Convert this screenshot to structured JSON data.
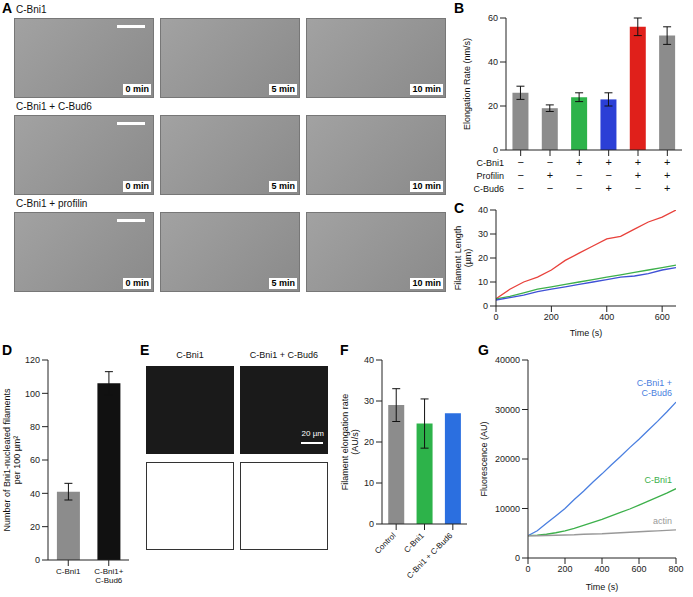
{
  "panels": {
    "A": {
      "panel": "A",
      "rows": [
        {
          "title": "C-Bni1",
          "times": [
            "0 min",
            "5 min",
            "10 min"
          ]
        },
        {
          "title": "C-Bni1 + C-Bud6",
          "times": [
            "0 min",
            "5 min",
            "10 min"
          ]
        },
        {
          "title": "C-Bni1 + profilin",
          "times": [
            "0 min",
            "5 min",
            "10 min"
          ]
        }
      ]
    },
    "E": {
      "panel": "E",
      "columns": [
        "C-Bni1",
        "C-Bni1 + C-Bud6"
      ],
      "scale_bar": "20 µm"
    }
  },
  "chart_data": [
    {
      "panel": "B",
      "type": "bar",
      "y_label": "Elongation Rate (nm/s)",
      "categories": [
        null,
        null,
        null,
        null,
        null,
        null
      ],
      "values": [
        26,
        19,
        24,
        23,
        56,
        52
      ],
      "errors": [
        3,
        1.5,
        2,
        3,
        4,
        4
      ],
      "colors": [
        "#8c8c8c",
        "#8c8c8c",
        "#2db34a",
        "#2b3fd6",
        "#e0201b",
        "#8c8c8c"
      ],
      "ylim": [
        0,
        60
      ],
      "yticks": [
        0,
        20,
        40,
        60
      ],
      "conditions": [
        {
          "name": "C-Bni1",
          "marks": [
            "−",
            "−",
            "+",
            "+",
            "+",
            "+"
          ]
        },
        {
          "name": "Profilin",
          "marks": [
            "−",
            "+",
            "−",
            "−",
            "+",
            "+"
          ]
        },
        {
          "name": "C-Bud6",
          "marks": [
            "−",
            "−",
            "−",
            "+",
            "−",
            "+"
          ]
        }
      ]
    },
    {
      "panel": "C",
      "type": "line",
      "x_label": "Time (s)",
      "y_label": "Filament Length (µm)",
      "x": [
        0,
        50,
        100,
        150,
        200,
        250,
        300,
        350,
        400,
        450,
        500,
        550,
        600,
        650
      ],
      "series": [
        {
          "color": "#e8413b",
          "values": [
            3,
            7,
            10,
            12,
            15,
            19,
            22,
            25,
            28,
            29,
            32,
            35,
            37,
            40
          ]
        },
        {
          "color": "#3db04b",
          "values": [
            3,
            4,
            5.5,
            7,
            8,
            9,
            10,
            11,
            12,
            13,
            14,
            15,
            16,
            17
          ]
        },
        {
          "color": "#3f51d6",
          "values": [
            2.5,
            3.5,
            4.5,
            6,
            7,
            8,
            9,
            10,
            11,
            12,
            12.5,
            13.5,
            15,
            16
          ]
        }
      ],
      "xlim": [
        0,
        650
      ],
      "xticks": [
        0,
        200,
        400,
        600
      ],
      "ylim": [
        0,
        40
      ],
      "yticks": [
        0,
        10,
        20,
        30,
        40
      ]
    },
    {
      "panel": "D",
      "type": "bar",
      "y_label": "Number of Bni1-nucleated filaments per 100 µm²",
      "categories": [
        "C-Bni1",
        "C-Bni1+ C-Bud6"
      ],
      "values": [
        41,
        106
      ],
      "errors": [
        5,
        7
      ],
      "colors": [
        "#8c8c8c",
        "#111111"
      ],
      "ylim": [
        0,
        120
      ],
      "yticks": [
        0,
        20,
        40,
        60,
        80,
        100,
        120
      ]
    },
    {
      "panel": "F",
      "type": "bar",
      "y_label": "Filament elongation rate (AU/s)",
      "categories": [
        "Control",
        "C-Bni1",
        "C-Bni1 + C-Bud6"
      ],
      "values": [
        29,
        24.5,
        27
      ],
      "errors": [
        4,
        6,
        null
      ],
      "colors": [
        "#8c8c8c",
        "#2db34a",
        "#2b6fe0"
      ],
      "ylim": [
        0,
        40
      ],
      "yticks": [
        0,
        10,
        20,
        30,
        40
      ]
    },
    {
      "panel": "G",
      "type": "line",
      "x_label": "Time (s)",
      "y_label": "Fluorescence (AU)",
      "x": [
        0,
        50,
        100,
        150,
        200,
        250,
        300,
        350,
        400,
        450,
        500,
        550,
        600,
        650,
        700,
        750,
        800
      ],
      "series": [
        {
          "name": "C-Bni1 + C-Bud6",
          "color": "#4a7fe0",
          "values": [
            4500,
            5500,
            7000,
            8500,
            10000,
            11800,
            13500,
            15300,
            17000,
            18800,
            20500,
            22300,
            24000,
            25800,
            27600,
            29500,
            31500
          ]
        },
        {
          "name": "C-Bni1",
          "color": "#3db04b",
          "values": [
            4500,
            4600,
            4800,
            5100,
            5500,
            6000,
            6600,
            7200,
            7800,
            8500,
            9200,
            9900,
            10700,
            11500,
            12300,
            13100,
            14000
          ]
        },
        {
          "name": "actin",
          "color": "#999999",
          "values": [
            4500,
            4500,
            4550,
            4600,
            4650,
            4700,
            4800,
            4850,
            4900,
            5000,
            5100,
            5200,
            5300,
            5400,
            5500,
            5600,
            5700
          ]
        }
      ],
      "xlim": [
        0,
        800
      ],
      "xticks": [
        0,
        200,
        400,
        600,
        800
      ],
      "ylim": [
        0,
        40000
      ],
      "yticks": [
        0,
        10000,
        20000,
        30000,
        40000
      ]
    }
  ]
}
